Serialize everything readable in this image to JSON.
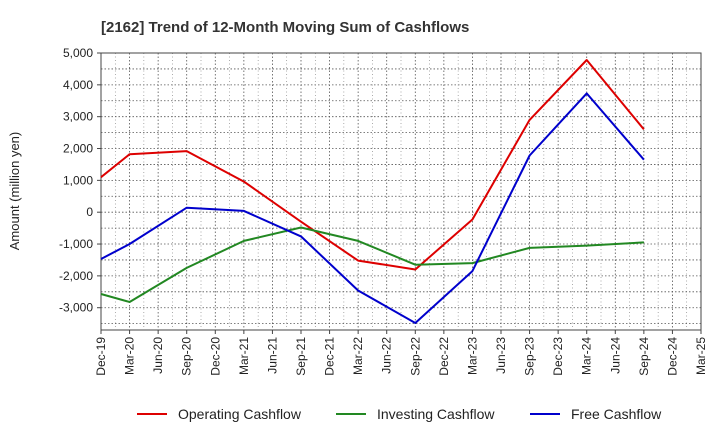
{
  "chart_data": {
    "type": "line",
    "title": "[2162]  Trend of 12-Month Moving Sum of Cashflows",
    "xlabel": "",
    "ylabel": "Amount (million yen)",
    "ylim": [
      -3700,
      5000
    ],
    "yticks": [
      5000,
      4000,
      3000,
      2000,
      1000,
      0,
      -1000,
      -2000,
      -3000
    ],
    "ytick_labels": [
      "5,000",
      "4,000",
      "3,000",
      "2,000",
      "1,000",
      "0",
      "-1,000",
      "-2,000",
      "-3,000"
    ],
    "categories": [
      "Dec-19",
      "Mar-20",
      "Jun-20",
      "Sep-20",
      "Dec-20",
      "Mar-21",
      "Jun-21",
      "Sep-21",
      "Dec-21",
      "Mar-22",
      "Jun-22",
      "Sep-22",
      "Dec-22",
      "Mar-23",
      "Jun-23",
      "Sep-23",
      "Dec-23",
      "Mar-24",
      "Jun-24",
      "Sep-24",
      "Dec-24",
      "Mar-25"
    ],
    "grid": true,
    "legend_position": "bottom",
    "series": [
      {
        "name": "Operating Cashflow",
        "color": "#dd0000",
        "values": [
          1100,
          1820,
          null,
          1920,
          null,
          960,
          null,
          -300,
          null,
          -1520,
          null,
          -1800,
          null,
          -230,
          null,
          2900,
          null,
          4780,
          null,
          2600,
          null,
          null
        ]
      },
      {
        "name": "Investing Cashflow",
        "color": "#228822",
        "values": [
          -2570,
          -2820,
          null,
          -1750,
          null,
          -900,
          null,
          -480,
          null,
          -900,
          null,
          -1650,
          null,
          -1600,
          null,
          -1120,
          null,
          -1050,
          null,
          -950,
          null,
          null
        ]
      },
      {
        "name": "Free Cashflow",
        "color": "#0000cc",
        "values": [
          -1470,
          -1000,
          null,
          140,
          null,
          40,
          null,
          -760,
          null,
          -2460,
          null,
          -3480,
          null,
          -1850,
          null,
          1780,
          null,
          3730,
          null,
          1650,
          null,
          null
        ]
      }
    ]
  }
}
